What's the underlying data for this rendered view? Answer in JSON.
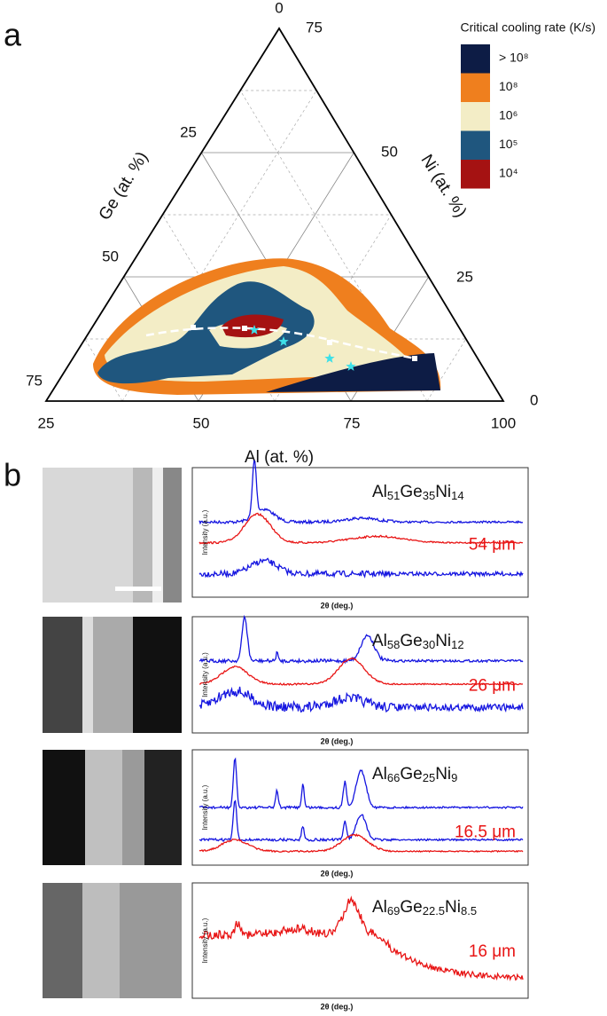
{
  "panel_a": {
    "label": "a",
    "legend": {
      "title": "Critical cooling rate (K/s)",
      "items": [
        "> 10⁸",
        "10⁸",
        "10⁶",
        "10⁵",
        "10⁴"
      ]
    },
    "axes": {
      "ge": "Ge (at. %)",
      "ni": "Ni (at. %)",
      "al": "Al (at. %)"
    },
    "ticks": {
      "apex": "0",
      "ni": [
        "75",
        "50",
        "25",
        "0"
      ],
      "ge": [
        "25",
        "50",
        "75"
      ],
      "al": [
        "25",
        "50",
        "75",
        "100"
      ]
    }
  },
  "panel_b": {
    "label": "b",
    "plots": [
      {
        "formula": [
          [
            "Al",
            "51"
          ],
          [
            "Ge",
            "35"
          ],
          [
            "Ni",
            "14"
          ]
        ],
        "thickness": "54 μm",
        "ylabel": "Intensity (a.u.)",
        "xlabel": "2θ (deg.)"
      },
      {
        "formula": [
          [
            "Al",
            "58"
          ],
          [
            "Ge",
            "30"
          ],
          [
            "Ni",
            "12"
          ]
        ],
        "thickness": "26 μm",
        "ylabel": "Intensity (a.u.)",
        "xlabel": "2θ (deg.)"
      },
      {
        "formula": [
          [
            "Al",
            "66"
          ],
          [
            "Ge",
            "25"
          ],
          [
            "Ni",
            "9"
          ]
        ],
        "thickness": "16.5 μm",
        "ylabel": "Intensity (a.u.)",
        "xlabel": "2θ (deg.)"
      },
      {
        "formula": [
          [
            "Al",
            "69"
          ],
          [
            "Ge",
            "22.5"
          ],
          [
            "Ni",
            "8.5"
          ]
        ],
        "thickness": "16 μm",
        "ylabel": "Intensity (a.u.)",
        "xlabel": "2θ (deg.)"
      }
    ]
  }
}
